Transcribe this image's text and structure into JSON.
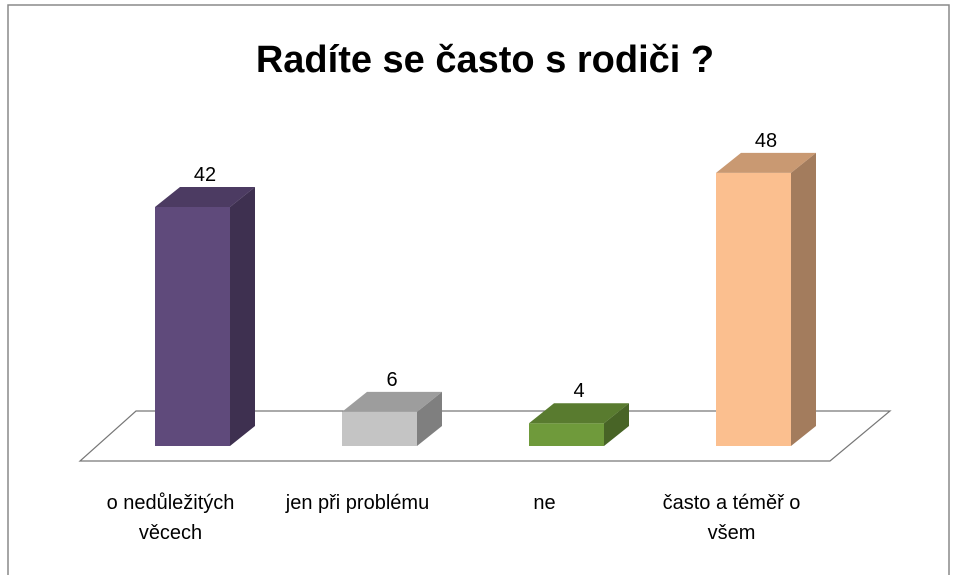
{
  "chart_data": {
    "type": "bar3d",
    "title": "Radíte se často s rodiči ?",
    "categories": [
      "o nedůležitých věcech",
      "jen při problému",
      "ne",
      "často a téměř o všem"
    ],
    "values": [
      42,
      6,
      4,
      48
    ],
    "colors": [
      "#5f4a7b",
      "#c4c4c4",
      "#6f9a3b",
      "#fbbf8f"
    ]
  }
}
